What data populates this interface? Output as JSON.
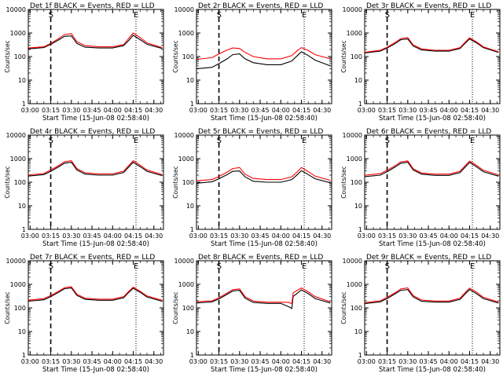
{
  "chart_data": [
    {
      "type": "line",
      "title": "Det 1f BLACK = Events, RED = LLD",
      "xlabel": "Start Time (15-Jun-08 02:58:40)",
      "ylabel": "Counts/sec",
      "yscale": "log",
      "ylim": [
        1,
        10000
      ],
      "xlim": [
        "02:58:40",
        "04:37:00"
      ],
      "xticks": [
        "03:00",
        "03:15",
        "03:30",
        "03:45",
        "04:00",
        "04:15",
        "04:30"
      ],
      "yticks": [
        "1",
        "10",
        "100",
        "1000",
        "10000"
      ],
      "markers": [
        {
          "label": "S",
          "time": "03:15"
        },
        {
          "label": "E",
          "time": "04:17"
        }
      ],
      "series": [
        {
          "color": "#000000",
          "x": [
            "02:58",
            "03:10",
            "03:15",
            "03:21",
            "03:25",
            "03:30",
            "03:34",
            "03:40",
            "03:50",
            "04:00",
            "04:08",
            "04:12",
            "04:15",
            "04:20",
            "04:25",
            "04:36"
          ],
          "values": [
            210,
            240,
            330,
            520,
            720,
            750,
            360,
            250,
            230,
            230,
            290,
            500,
            800,
            520,
            330,
            220
          ]
        },
        {
          "color": "#ff0000",
          "x": [
            "02:58",
            "03:10",
            "03:15",
            "03:21",
            "03:25",
            "03:30",
            "03:34",
            "03:40",
            "03:50",
            "04:00",
            "04:08",
            "04:12",
            "04:15",
            "04:20",
            "04:25",
            "04:36"
          ],
          "values": [
            230,
            260,
            360,
            600,
            850,
            950,
            430,
            290,
            260,
            260,
            320,
            620,
            1000,
            640,
            380,
            240
          ]
        }
      ]
    },
    {
      "type": "line",
      "title": "Det 2r BLACK = Events, RED = LLD",
      "xlabel": "Start Time (15-Jun-08 02:58:40)",
      "ylabel": "Counts/sec",
      "yscale": "log",
      "ylim": [
        1,
        10000
      ],
      "xlim": [
        "02:58:40",
        "04:37:00"
      ],
      "xticks": [
        "03:00",
        "03:15",
        "03:30",
        "03:45",
        "04:00",
        "04:15",
        "04:30"
      ],
      "yticks": [
        "1",
        "10",
        "100",
        "1000",
        "10000"
      ],
      "markers": [
        {
          "label": "S",
          "time": "03:15"
        },
        {
          "label": "E",
          "time": "04:17"
        }
      ],
      "series": [
        {
          "color": "#000000",
          "x": [
            "02:58",
            "03:10",
            "03:15",
            "03:21",
            "03:25",
            "03:30",
            "03:34",
            "03:40",
            "03:50",
            "04:00",
            "04:08",
            "04:12",
            "04:15",
            "04:20",
            "04:25",
            "04:36"
          ],
          "values": [
            30,
            35,
            50,
            80,
            120,
            130,
            80,
            55,
            45,
            45,
            65,
            110,
            160,
            110,
            70,
            40
          ]
        },
        {
          "color": "#ff0000",
          "x": [
            "02:58",
            "03:10",
            "03:15",
            "03:21",
            "03:25",
            "03:30",
            "03:34",
            "03:40",
            "03:50",
            "04:00",
            "04:08",
            "04:12",
            "04:15",
            "04:20",
            "04:25",
            "04:36"
          ],
          "values": [
            75,
            90,
            130,
            190,
            230,
            220,
            150,
            100,
            80,
            80,
            110,
            180,
            240,
            180,
            120,
            80
          ]
        }
      ]
    },
    {
      "type": "line",
      "title": "Det 3r BLACK = Events, RED = LLD",
      "xlabel": "Start Time (15-Jun-08 02:58:40)",
      "ylabel": "Counts/sec",
      "yscale": "log",
      "ylim": [
        1,
        10000
      ],
      "xlim": [
        "02:58:40",
        "04:37:00"
      ],
      "xticks": [
        "03:00",
        "03:15",
        "03:30",
        "03:45",
        "04:00",
        "04:15",
        "04:30"
      ],
      "yticks": [
        "1",
        "10",
        "100",
        "1000",
        "10000"
      ],
      "markers": [
        {
          "label": "S",
          "time": "03:15"
        },
        {
          "label": "E",
          "time": "04:17"
        }
      ],
      "series": [
        {
          "color": "#000000",
          "x": [
            "02:58",
            "03:10",
            "03:15",
            "03:21",
            "03:25",
            "03:30",
            "03:34",
            "03:40",
            "03:50",
            "04:00",
            "04:08",
            "04:12",
            "04:15",
            "04:20",
            "04:25",
            "04:36"
          ],
          "values": [
            140,
            170,
            230,
            360,
            520,
            560,
            280,
            190,
            170,
            170,
            220,
            380,
            560,
            380,
            240,
            150
          ]
        },
        {
          "color": "#ff0000",
          "x": [
            "02:58",
            "03:10",
            "03:15",
            "03:21",
            "03:25",
            "03:30",
            "03:34",
            "03:40",
            "03:50",
            "04:00",
            "04:08",
            "04:12",
            "04:15",
            "04:20",
            "04:25",
            "04:36"
          ],
          "values": [
            150,
            185,
            250,
            400,
            580,
            640,
            310,
            210,
            185,
            185,
            240,
            420,
            620,
            420,
            260,
            160
          ]
        }
      ]
    },
    {
      "type": "line",
      "title": "Det 4r BLACK = Events, RED = LLD",
      "xlabel": "Start Time (15-Jun-08 02:58:40)",
      "ylabel": "Counts/sec",
      "yscale": "log",
      "ylim": [
        1,
        10000
      ],
      "xlim": [
        "02:58:40",
        "04:37:00"
      ],
      "xticks": [
        "03:00",
        "03:15",
        "03:30",
        "03:45",
        "04:00",
        "04:15",
        "04:30"
      ],
      "yticks": [
        "1",
        "10",
        "100",
        "1000",
        "10000"
      ],
      "markers": [
        {
          "label": "S",
          "time": "03:15"
        },
        {
          "label": "E",
          "time": "04:17"
        }
      ],
      "series": [
        {
          "color": "#000000",
          "x": [
            "02:58",
            "03:10",
            "03:15",
            "03:21",
            "03:25",
            "03:30",
            "03:34",
            "03:40",
            "03:50",
            "04:00",
            "04:08",
            "04:12",
            "04:15",
            "04:20",
            "04:25",
            "04:36"
          ],
          "values": [
            180,
            210,
            290,
            460,
            640,
            700,
            330,
            220,
            200,
            200,
            260,
            460,
            700,
            460,
            290,
            190
          ]
        },
        {
          "color": "#ff0000",
          "x": [
            "02:58",
            "03:10",
            "03:15",
            "03:21",
            "03:25",
            "03:30",
            "03:34",
            "03:40",
            "03:50",
            "04:00",
            "04:08",
            "04:12",
            "04:15",
            "04:20",
            "04:25",
            "04:36"
          ],
          "values": [
            200,
            235,
            330,
            520,
            740,
            820,
            380,
            250,
            225,
            225,
            295,
            530,
            820,
            530,
            330,
            210
          ]
        }
      ]
    },
    {
      "type": "line",
      "title": "Det 5r BLACK = Events, RED = LLD",
      "xlabel": "Start Time (15-Jun-08 02:58:40)",
      "ylabel": "Counts/sec",
      "yscale": "log",
      "ylim": [
        1,
        10000
      ],
      "xlim": [
        "02:58:40",
        "04:37:00"
      ],
      "xticks": [
        "03:00",
        "03:15",
        "03:30",
        "03:45",
        "04:00",
        "04:15",
        "04:30"
      ],
      "yticks": [
        "1",
        "10",
        "100",
        "1000",
        "10000"
      ],
      "markers": [
        {
          "label": "S",
          "time": "03:15"
        },
        {
          "label": "E",
          "time": "04:17"
        }
      ],
      "series": [
        {
          "color": "#000000",
          "x": [
            "02:58",
            "03:10",
            "03:15",
            "03:21",
            "03:25",
            "03:30",
            "03:34",
            "03:40",
            "03:50",
            "04:00",
            "04:08",
            "04:12",
            "04:15",
            "04:20",
            "04:25",
            "04:36"
          ],
          "values": [
            90,
            105,
            140,
            210,
            290,
            300,
            170,
            110,
            100,
            100,
            130,
            210,
            310,
            210,
            140,
            95
          ]
        },
        {
          "color": "#ff0000",
          "x": [
            "02:58",
            "03:10",
            "03:15",
            "03:21",
            "03:25",
            "03:30",
            "03:34",
            "03:40",
            "03:50",
            "04:00",
            "04:08",
            "04:12",
            "04:15",
            "04:20",
            "04:25",
            "04:36"
          ],
          "values": [
            115,
            130,
            175,
            270,
            380,
            420,
            220,
            145,
            130,
            130,
            170,
            280,
            420,
            280,
            180,
            120
          ]
        }
      ]
    },
    {
      "type": "line",
      "title": "Det 6r BLACK = Events, RED = LLD",
      "xlabel": "Start Time (15-Jun-08 02:58:40)",
      "ylabel": "Counts/sec",
      "yscale": "log",
      "ylim": [
        1,
        10000
      ],
      "xlim": [
        "02:58:40",
        "04:37:00"
      ],
      "xticks": [
        "03:00",
        "03:15",
        "03:30",
        "03:45",
        "04:00",
        "04:15",
        "04:30"
      ],
      "yticks": [
        "1",
        "10",
        "100",
        "1000",
        "10000"
      ],
      "markers": [
        {
          "label": "S",
          "time": "03:15"
        },
        {
          "label": "E",
          "time": "04:17"
        }
      ],
      "series": [
        {
          "color": "#000000",
          "x": [
            "02:58",
            "03:10",
            "03:15",
            "03:21",
            "03:25",
            "03:30",
            "03:34",
            "03:40",
            "03:50",
            "04:00",
            "04:08",
            "04:12",
            "04:15",
            "04:20",
            "04:25",
            "04:36"
          ],
          "values": [
            170,
            200,
            280,
            450,
            640,
            700,
            330,
            220,
            195,
            195,
            255,
            450,
            690,
            450,
            280,
            180
          ]
        },
        {
          "color": "#ff0000",
          "x": [
            "02:58",
            "03:10",
            "03:15",
            "03:21",
            "03:25",
            "03:30",
            "03:34",
            "03:40",
            "03:50",
            "04:00",
            "04:08",
            "04:12",
            "04:15",
            "04:20",
            "04:25",
            "04:36"
          ],
          "values": [
            195,
            230,
            320,
            510,
            730,
            800,
            370,
            245,
            220,
            220,
            290,
            520,
            790,
            520,
            320,
            205
          ]
        }
      ]
    },
    {
      "type": "line",
      "title": "Det 7r BLACK = Events, RED = LLD",
      "xlabel": "Start Time (15-Jun-08 02:58:40)",
      "ylabel": "Counts/sec",
      "yscale": "log",
      "ylim": [
        1,
        10000
      ],
      "xlim": [
        "02:58:40",
        "04:37:00"
      ],
      "xticks": [
        "03:00",
        "03:15",
        "03:30",
        "03:45",
        "04:00",
        "04:15",
        "04:30"
      ],
      "yticks": [
        "1",
        "10",
        "100",
        "1000",
        "10000"
      ],
      "markers": [
        {
          "label": "S",
          "time": "03:15"
        },
        {
          "label": "E",
          "time": "04:17"
        }
      ],
      "series": [
        {
          "color": "#000000",
          "x": [
            "02:58",
            "03:10",
            "03:15",
            "03:21",
            "03:25",
            "03:30",
            "03:34",
            "03:40",
            "03:50",
            "04:00",
            "04:08",
            "04:12",
            "04:15",
            "04:20",
            "04:25",
            "04:36"
          ],
          "values": [
            190,
            220,
            300,
            470,
            650,
            700,
            340,
            230,
            210,
            210,
            270,
            470,
            680,
            460,
            290,
            190
          ]
        },
        {
          "color": "#ff0000",
          "x": [
            "02:58",
            "03:10",
            "03:15",
            "03:21",
            "03:25",
            "03:30",
            "03:34",
            "03:40",
            "03:50",
            "04:00",
            "04:08",
            "04:12",
            "04:15",
            "04:20",
            "04:25",
            "04:36"
          ],
          "values": [
            210,
            245,
            335,
            520,
            720,
            790,
            380,
            255,
            235,
            235,
            300,
            520,
            760,
            510,
            320,
            210
          ]
        }
      ]
    },
    {
      "type": "line",
      "title": "Det 8r BLACK = Events, RED = LLD",
      "xlabel": "Start Time (15-Jun-08 02:58:40)",
      "ylabel": "Counts/sec",
      "yscale": "log",
      "ylim": [
        1,
        10000
      ],
      "xlim": [
        "02:58:40",
        "04:37:00"
      ],
      "xticks": [
        "03:00",
        "03:15",
        "03:30",
        "03:45",
        "04:00",
        "04:15",
        "04:30"
      ],
      "yticks": [
        "1",
        "10",
        "100",
        "1000",
        "10000"
      ],
      "markers": [
        {
          "label": "S",
          "time": "03:15"
        },
        {
          "label": "E",
          "time": "04:17"
        }
      ],
      "series": [
        {
          "color": "#000000",
          "x": [
            "02:58",
            "03:10",
            "03:15",
            "03:21",
            "03:25",
            "03:30",
            "03:34",
            "03:40",
            "03:50",
            "04:00",
            "04:06",
            "04:08",
            "04:09",
            "04:10",
            "04:12",
            "04:15",
            "04:20",
            "04:25",
            "04:36"
          ],
          "values": [
            160,
            180,
            240,
            380,
            520,
            560,
            260,
            170,
            155,
            155,
            110,
            95,
            310,
            340,
            420,
            580,
            400,
            250,
            160
          ]
        },
        {
          "color": "#ff0000",
          "x": [
            "02:58",
            "03:10",
            "03:15",
            "03:21",
            "03:25",
            "03:30",
            "03:34",
            "03:40",
            "03:50",
            "04:00",
            "04:06",
            "04:08",
            "04:09",
            "04:10",
            "04:12",
            "04:15",
            "04:20",
            "04:25",
            "04:36"
          ],
          "values": [
            180,
            200,
            270,
            430,
            590,
            640,
            300,
            195,
            175,
            175,
            170,
            150,
            430,
            470,
            560,
            700,
            480,
            300,
            180
          ]
        }
      ]
    },
    {
      "type": "line",
      "title": "Det 9r BLACK = Events, RED = LLD",
      "xlabel": "Start Time (15-Jun-08 02:58:40)",
      "ylabel": "Counts/sec",
      "yscale": "log",
      "ylim": [
        1,
        10000
      ],
      "xlim": [
        "02:58:40",
        "04:37:00"
      ],
      "xticks": [
        "03:00",
        "03:15",
        "03:30",
        "03:45",
        "04:00",
        "04:15",
        "04:30"
      ],
      "yticks": [
        "1",
        "10",
        "100",
        "1000",
        "10000"
      ],
      "markers": [
        {
          "label": "S",
          "time": "03:15"
        },
        {
          "label": "E",
          "time": "04:17"
        }
      ],
      "series": [
        {
          "color": "#000000",
          "x": [
            "02:58",
            "03:10",
            "03:15",
            "03:21",
            "03:25",
            "03:30",
            "03:34",
            "03:40",
            "03:50",
            "04:00",
            "04:08",
            "04:12",
            "04:15",
            "04:20",
            "04:25",
            "04:36"
          ],
          "values": [
            150,
            180,
            250,
            400,
            560,
            600,
            290,
            190,
            175,
            175,
            230,
            400,
            600,
            400,
            250,
            160
          ]
        },
        {
          "color": "#ff0000",
          "x": [
            "02:58",
            "03:10",
            "03:15",
            "03:21",
            "03:25",
            "03:30",
            "03:34",
            "03:40",
            "03:50",
            "04:00",
            "04:08",
            "04:12",
            "04:15",
            "04:20",
            "04:25",
            "04:36"
          ],
          "values": [
            165,
            200,
            280,
            450,
            640,
            700,
            330,
            215,
            195,
            195,
            260,
            460,
            690,
            460,
            285,
            175
          ]
        }
      ]
    }
  ]
}
